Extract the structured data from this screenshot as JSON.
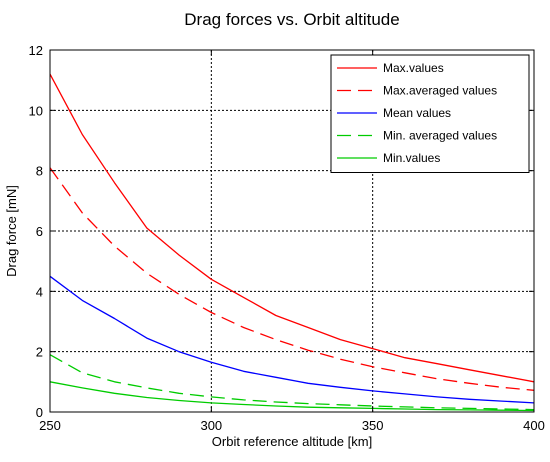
{
  "chart_data": {
    "type": "line",
    "title": "Drag forces vs. Orbit altitude",
    "xlabel": "Orbit reference altitude [km]",
    "ylabel": "Drag force [mN]",
    "xlim": [
      250,
      400
    ],
    "ylim": [
      0,
      12
    ],
    "xticks": [
      250,
      300,
      350,
      400
    ],
    "yticks": [
      0,
      2,
      4,
      6,
      8,
      10,
      12
    ],
    "grid": true,
    "legend_position": "top-right",
    "x": [
      250,
      260,
      270,
      280,
      290,
      300,
      310,
      320,
      330,
      340,
      350,
      360,
      370,
      380,
      390,
      400
    ],
    "series": [
      {
        "name": "Max.values",
        "color": "#ff0000",
        "dash": "solid",
        "values": [
          11.2,
          9.2,
          7.6,
          6.1,
          5.2,
          4.4,
          3.8,
          3.2,
          2.8,
          2.4,
          2.1,
          1.8,
          1.6,
          1.4,
          1.2,
          1.0
        ]
      },
      {
        "name": "Max.averaged values",
        "color": "#ff0000",
        "dash": "dashed",
        "values": [
          8.1,
          6.6,
          5.5,
          4.6,
          3.9,
          3.3,
          2.8,
          2.4,
          2.05,
          1.75,
          1.5,
          1.3,
          1.1,
          0.95,
          0.82,
          0.72
        ]
      },
      {
        "name": "Mean values",
        "color": "#0000ff",
        "dash": "solid",
        "values": [
          4.5,
          3.7,
          3.1,
          2.45,
          2.0,
          1.65,
          1.35,
          1.15,
          0.95,
          0.82,
          0.7,
          0.6,
          0.5,
          0.42,
          0.36,
          0.3
        ]
      },
      {
        "name": "Min. averaged values",
        "color": "#00cc00",
        "dash": "dashed",
        "values": [
          1.9,
          1.3,
          1.0,
          0.8,
          0.62,
          0.5,
          0.4,
          0.33,
          0.28,
          0.24,
          0.2,
          0.17,
          0.14,
          0.12,
          0.1,
          0.08
        ]
      },
      {
        "name": "Min.values",
        "color": "#00cc00",
        "dash": "solid",
        "values": [
          1.0,
          0.8,
          0.62,
          0.48,
          0.38,
          0.3,
          0.25,
          0.2,
          0.16,
          0.14,
          0.12,
          0.1,
          0.08,
          0.07,
          0.06,
          0.05
        ]
      }
    ]
  }
}
